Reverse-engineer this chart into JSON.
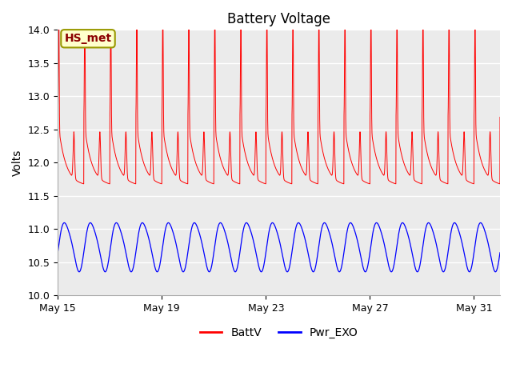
{
  "title": "Battery Voltage",
  "ylabel": "Volts",
  "ylim": [
    10.0,
    14.0
  ],
  "yticks": [
    10.0,
    10.5,
    11.0,
    11.5,
    12.0,
    12.5,
    13.0,
    13.5,
    14.0
  ],
  "xtick_labels": [
    "May 15",
    "May 19",
    "May 23",
    "May 27",
    "May 31"
  ],
  "xtick_positions": [
    0,
    4,
    8,
    12,
    16
  ],
  "legend_entries": [
    "BattV",
    "Pwr_EXO"
  ],
  "line_colors": [
    "red",
    "blue"
  ],
  "annotation_text": "HS_met",
  "annotation_bg": "#ffffcc",
  "annotation_border": "#999900",
  "annotation_text_color": "#8b0000",
  "plot_bg": "#ebebeb",
  "grid_color": "white",
  "title_fontsize": 12,
  "label_fontsize": 10,
  "tick_fontsize": 9,
  "n_days": 17,
  "xlim_end": 17
}
